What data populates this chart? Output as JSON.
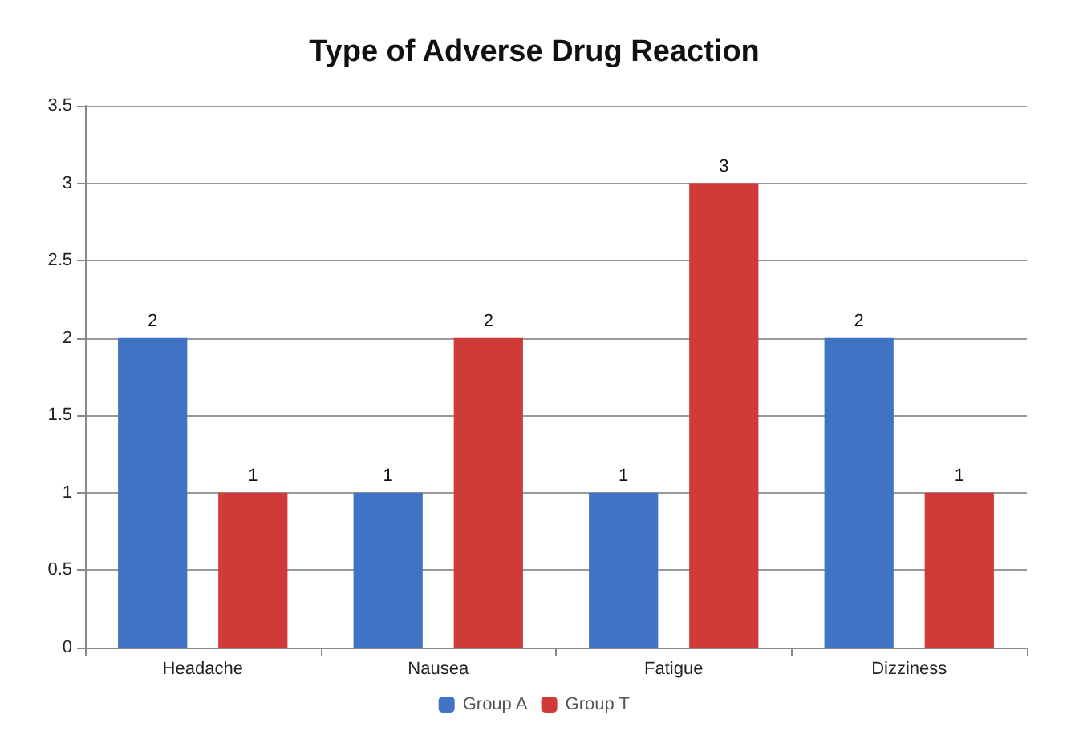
{
  "chart_data": {
    "type": "bar",
    "title": "Type of Adverse Drug Reaction",
    "categories": [
      "Headache",
      "Nausea",
      "Fatigue",
      "Dizziness"
    ],
    "series": [
      {
        "name": "Group A",
        "color": "#3f74c4",
        "values": [
          2,
          1,
          1,
          2
        ]
      },
      {
        "name": "Group T",
        "color": "#d03b37",
        "values": [
          1,
          2,
          3,
          1
        ]
      }
    ],
    "ylim": [
      0,
      3.5
    ],
    "yticks": [
      0,
      0.5,
      1,
      1.5,
      2,
      2.5,
      3,
      3.5
    ],
    "grid": "y",
    "legend": "bottom",
    "data_labels": true
  }
}
